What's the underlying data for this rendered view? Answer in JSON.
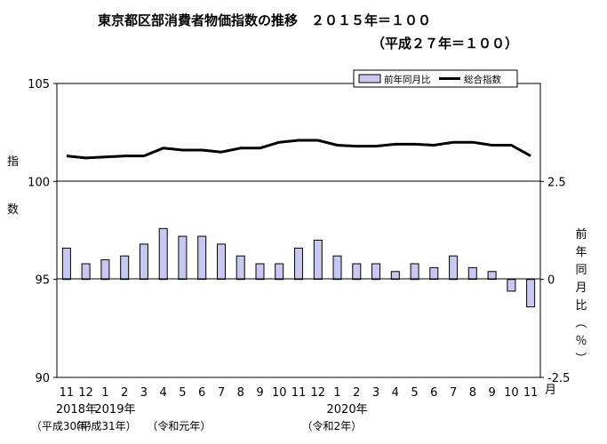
{
  "chart_data": {
    "type": "bar+line",
    "title_line1": "東京都区部消費者物価指数の推移　２０１５年＝１００",
    "title_line2": "（平成２７年＝１００）",
    "categories": [
      "11",
      "12",
      "1",
      "2",
      "3",
      "4",
      "5",
      "6",
      "7",
      "8",
      "9",
      "10",
      "11",
      "12",
      "1",
      "2",
      "3",
      "4",
      "5",
      "6",
      "7",
      "8",
      "9",
      "10",
      "11"
    ],
    "x_unit": "月",
    "year_labels": [
      {
        "text": "2018年",
        "at": 0
      },
      {
        "text": "2019年",
        "at": 2
      },
      {
        "text": "2020年",
        "at": 14
      }
    ],
    "era_labels": [
      {
        "text": "（平成30年）",
        "at": 0
      },
      {
        "text": "（平成31年）",
        "at": 2
      },
      {
        "text": "（令和元年）",
        "at": 6
      },
      {
        "text": "（令和2年）",
        "at": 14
      }
    ],
    "left_axis": {
      "label": "指数",
      "ylim": [
        90,
        105
      ],
      "ticks": [
        "90",
        "95",
        "100",
        "105"
      ]
    },
    "right_axis": {
      "label": "前年同月比（％）",
      "ylim": [
        -2.5,
        5
      ],
      "ticks": [
        "-2.5",
        "0",
        "2.5"
      ]
    },
    "series": [
      {
        "name": "前年同月比",
        "kind": "bar",
        "axis": "right",
        "color": "#c8c8f0",
        "values": [
          0.8,
          0.4,
          0.5,
          0.6,
          0.9,
          1.3,
          1.1,
          1.1,
          0.9,
          0.6,
          0.4,
          0.4,
          0.8,
          1.0,
          0.6,
          0.4,
          0.4,
          0.2,
          0.4,
          0.3,
          0.6,
          0.3,
          0.2,
          -0.3,
          -0.7
        ]
      },
      {
        "name": "総合指数",
        "kind": "line",
        "axis": "left",
        "color": "#000000",
        "values": [
          101.3,
          101.2,
          101.25,
          101.3,
          101.3,
          101.7,
          101.6,
          101.6,
          101.5,
          101.7,
          101.7,
          102.0,
          102.1,
          102.1,
          101.85,
          101.8,
          101.8,
          101.9,
          101.9,
          101.85,
          102.0,
          102.0,
          101.85,
          101.85,
          101.3
        ]
      }
    ],
    "legend_position": "top-right",
    "grid": false
  }
}
